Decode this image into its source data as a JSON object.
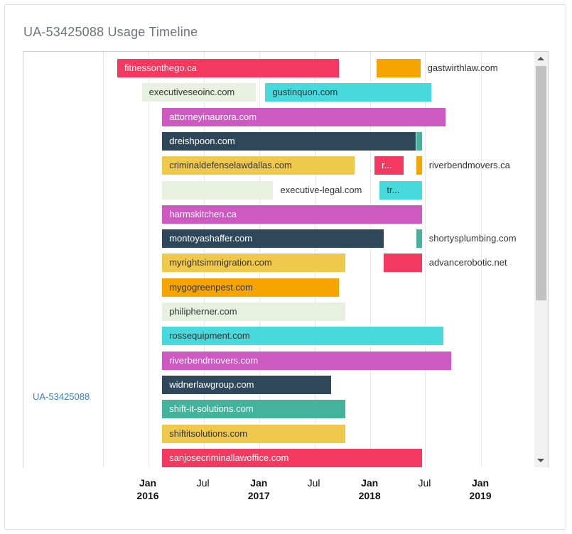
{
  "title": "UA-53425088 Usage Timeline",
  "row_label": "UA-53425088",
  "colors": {
    "red": "#f3395f",
    "orange": "#f6a400",
    "light": "#e8f1df",
    "cyan": "#48d9dc",
    "magenta": "#cc5ac0",
    "navy": "#2e4859",
    "green": "#43b39b",
    "yellow": "#efc94c"
  },
  "chart_data": {
    "type": "timeline",
    "x_ticks": [
      {
        "date": "2016-01-01",
        "line1": "Jan",
        "line2": "2016"
      },
      {
        "date": "2016-07-01",
        "line1": "Jul",
        "line2": ""
      },
      {
        "date": "2017-01-01",
        "line1": "Jan",
        "line2": "2017"
      },
      {
        "date": "2017-07-01",
        "line1": "Jul",
        "line2": ""
      },
      {
        "date": "2018-01-01",
        "line1": "Jan",
        "line2": "2018"
      },
      {
        "date": "2018-07-01",
        "line1": "Jul",
        "line2": ""
      },
      {
        "date": "2019-01-01",
        "line1": "Jan",
        "line2": "2019"
      }
    ],
    "bars": [
      {
        "row": 0,
        "label": "fitnessonthego.ca",
        "start": "2015-09-20",
        "end": "2017-09-20",
        "color": "red"
      },
      {
        "row": 0,
        "label": "gastwirthlaw.com",
        "start": "2018-01-22",
        "end": "2018-06-15",
        "color": "orange"
      },
      {
        "row": 1,
        "label": "executiveseoinc.com",
        "start": "2015-12-10",
        "end": "2016-12-20",
        "color": "light"
      },
      {
        "row": 1,
        "label": "gustinquon.com",
        "start": "2017-01-20",
        "end": "2018-07-20",
        "color": "cyan"
      },
      {
        "row": 2,
        "label": "attorneyinaurora.com",
        "start": "2016-02-15",
        "end": "2018-09-05",
        "color": "magenta"
      },
      {
        "row": 3,
        "label": "dreishpoon.com",
        "start": "2016-02-15",
        "end": "2018-05-30",
        "color": "navy"
      },
      {
        "row": 3,
        "label": "",
        "start": "2018-06-01",
        "end": "2018-06-20",
        "color": "green"
      },
      {
        "row": 4,
        "label": "criminaldefenselawdallas.com",
        "start": "2016-02-15",
        "end": "2017-11-10",
        "color": "yellow"
      },
      {
        "row": 4,
        "label": "r...",
        "start": "2018-01-15",
        "end": "2018-04-20",
        "color": "red"
      },
      {
        "row": 4,
        "label": "riverbendmovers.ca",
        "start": "2018-06-01",
        "end": "2018-06-20",
        "color": "orange"
      },
      {
        "row": 5,
        "label": "",
        "start": "2016-02-15",
        "end": "2017-02-15",
        "color": "light"
      },
      {
        "row": 5,
        "label": "executive-legal.com",
        "start": "2017-02-15",
        "end": "2017-02-15",
        "color": "none"
      },
      {
        "row": 5,
        "label": "tr...",
        "start": "2018-02-01",
        "end": "2018-06-20",
        "color": "cyan"
      },
      {
        "row": 6,
        "label": "harmskitchen.ca",
        "start": "2016-02-15",
        "end": "2018-06-20",
        "color": "magenta"
      },
      {
        "row": 7,
        "label": "montoyashaffer.com",
        "start": "2016-02-15",
        "end": "2018-02-15",
        "color": "navy"
      },
      {
        "row": 7,
        "label": "shortysplumbing.com",
        "start": "2018-06-01",
        "end": "2018-06-20",
        "color": "green"
      },
      {
        "row": 8,
        "label": "myrightsimmigration.com",
        "start": "2016-02-15",
        "end": "2017-10-10",
        "color": "yellow"
      },
      {
        "row": 8,
        "label": "advancerobotic.net",
        "start": "2018-02-15",
        "end": "2018-06-20",
        "color": "red"
      },
      {
        "row": 9,
        "label": "mygogreenpest.com",
        "start": "2016-02-15",
        "end": "2017-09-20",
        "color": "orange"
      },
      {
        "row": 10,
        "label": "philipherner.com",
        "start": "2016-02-15",
        "end": "2017-10-10",
        "color": "light"
      },
      {
        "row": 11,
        "label": "rossequipment.com",
        "start": "2016-02-15",
        "end": "2018-08-30",
        "color": "cyan"
      },
      {
        "row": 12,
        "label": "riverbendmovers.com",
        "start": "2016-02-15",
        "end": "2018-09-25",
        "color": "magenta"
      },
      {
        "row": 13,
        "label": "widnerlawgroup.com",
        "start": "2016-02-15",
        "end": "2017-08-25",
        "color": "navy"
      },
      {
        "row": 14,
        "label": "shift-it-solutions.com",
        "start": "2016-02-15",
        "end": "2017-10-10",
        "color": "green"
      },
      {
        "row": 15,
        "label": "shiftitsolutions.com",
        "start": "2016-02-15",
        "end": "2017-10-10",
        "color": "yellow"
      },
      {
        "row": 16,
        "label": "sanjosecriminallawoffice.com",
        "start": "2016-02-15",
        "end": "2018-06-20",
        "color": "red"
      }
    ]
  }
}
